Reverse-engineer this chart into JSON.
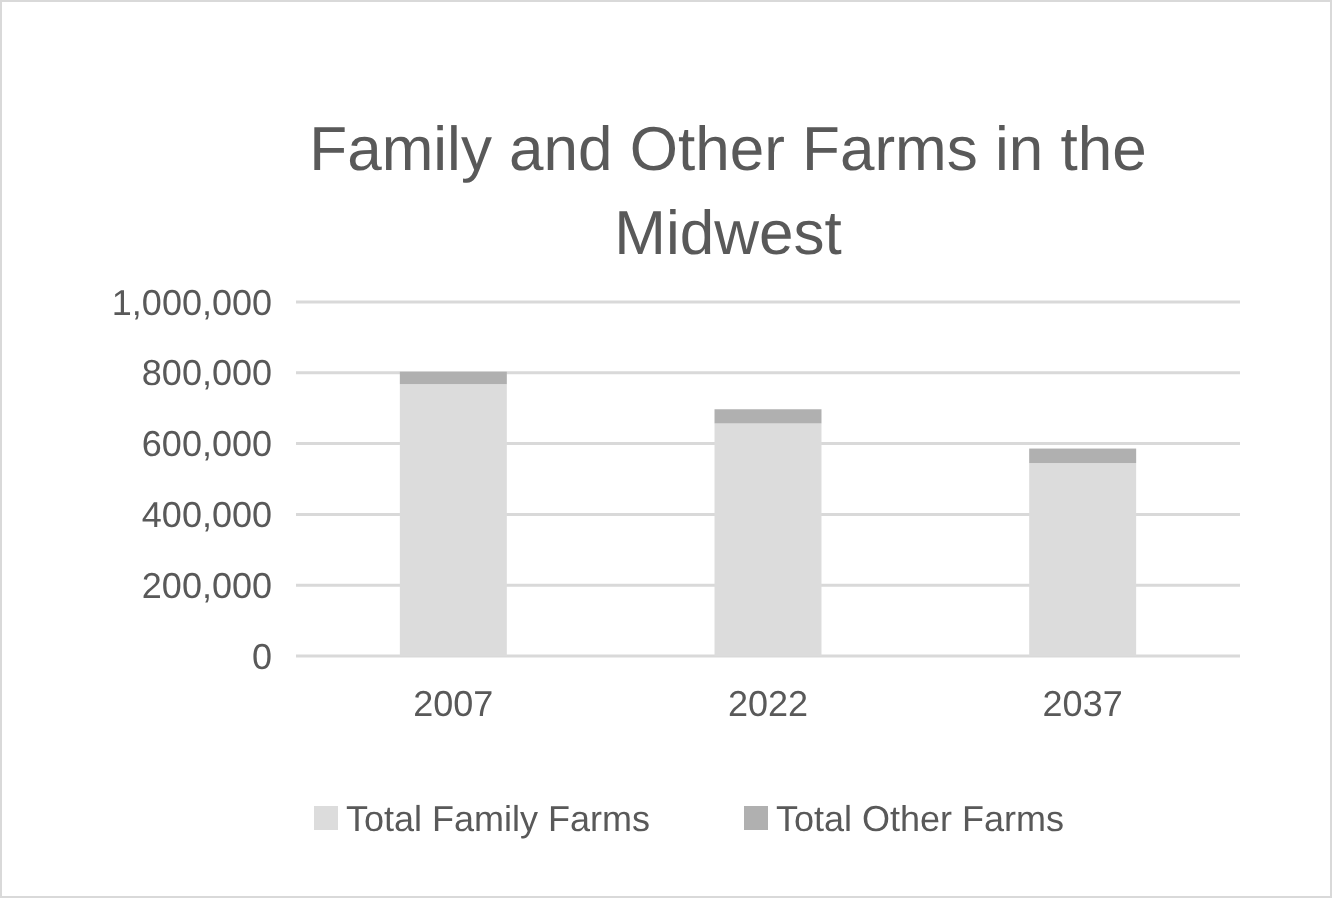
{
  "chart_data": {
    "type": "bar",
    "title": "Family and Other Farms in the Midwest",
    "categories": [
      "2007",
      "2022",
      "2037"
    ],
    "stacked": true,
    "ylim": [
      0,
      1000000
    ],
    "yticks": [
      {
        "value": 0,
        "label": "0"
      },
      {
        "value": 200000,
        "label": "200,000"
      },
      {
        "value": 400000,
        "label": "400,000"
      },
      {
        "value": 600000,
        "label": "600,000"
      },
      {
        "value": 800000,
        "label": "800,000"
      },
      {
        "value": 1000000,
        "label": "1,000,000"
      }
    ],
    "grid": "y",
    "legend": "bottom",
    "series": [
      {
        "name": "Total Family Farms",
        "color": "#dcdcdc",
        "values": [
          768000,
          657000,
          545000
        ]
      },
      {
        "name": "Total Other Farms",
        "color": "#b0b0b0",
        "values": [
          35000,
          40000,
          41000
        ]
      }
    ]
  }
}
